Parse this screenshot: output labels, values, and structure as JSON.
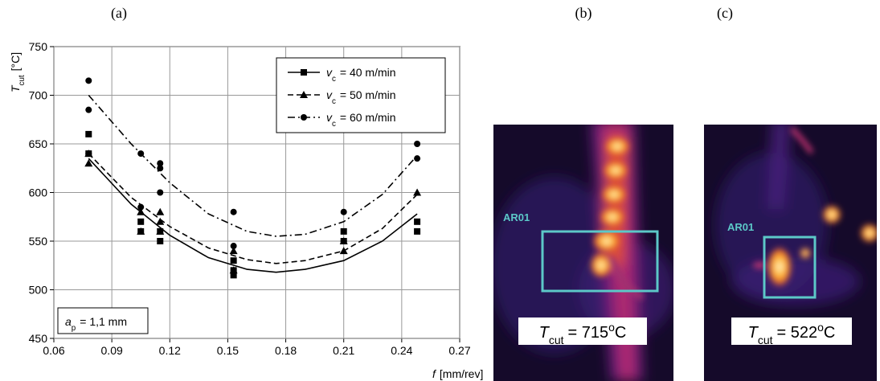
{
  "chart_data": {
    "type": "scatter",
    "panel_label": "(a)",
    "xlim": [
      0.06,
      0.27
    ],
    "xticks": [
      0.06,
      0.09,
      0.12,
      0.15,
      0.18,
      0.21,
      0.24,
      0.27
    ],
    "ylim": [
      450,
      750
    ],
    "yticks": [
      450,
      500,
      550,
      600,
      650,
      700,
      750
    ],
    "grid": true,
    "x_label": {
      "symbol": "f",
      "unit": "[mm/rev]"
    },
    "y_label": {
      "symbol": "T",
      "subscript": "cut",
      "unit": "[°C]"
    },
    "legend_symbol": "v",
    "legend_subscript": "c",
    "legend_position": "upper right",
    "annotation": {
      "symbol": "a",
      "subscript": "p",
      "text": "= 1,1 mm"
    },
    "series": [
      {
        "name": "= 40 m/min",
        "color": "#000000",
        "marker": "square",
        "line_style": "solid",
        "x": [
          0.078,
          0.078,
          0.105,
          0.105,
          0.115,
          0.115,
          0.153,
          0.153,
          0.153,
          0.21,
          0.21,
          0.248,
          0.248
        ],
        "values": [
          660,
          640,
          570,
          560,
          560,
          550,
          530,
          520,
          515,
          560,
          550,
          570,
          560
        ],
        "fit": {
          "x": [
            0.078,
            0.1,
            0.12,
            0.14,
            0.16,
            0.175,
            0.19,
            0.21,
            0.23,
            0.248
          ],
          "values": [
            635,
            588,
            556,
            533,
            521,
            518,
            521,
            530,
            550,
            578
          ]
        }
      },
      {
        "name": "= 50 m/min",
        "color": "#000000",
        "marker": "triangle",
        "line_style": "dashed",
        "x": [
          0.078,
          0.078,
          0.105,
          0.105,
          0.115,
          0.115,
          0.115,
          0.153,
          0.153,
          0.21,
          0.21,
          0.248
        ],
        "values": [
          640,
          630,
          580,
          560,
          580,
          570,
          560,
          540,
          520,
          550,
          540,
          600
        ],
        "fit": {
          "x": [
            0.078,
            0.1,
            0.12,
            0.14,
            0.16,
            0.175,
            0.19,
            0.21,
            0.23,
            0.248
          ],
          "values": [
            640,
            595,
            565,
            543,
            531,
            527,
            530,
            540,
            563,
            598
          ]
        }
      },
      {
        "name": "= 60 m/min",
        "color": "#000000",
        "marker": "circle",
        "line_style": "dashdot",
        "x": [
          0.078,
          0.078,
          0.078,
          0.105,
          0.105,
          0.115,
          0.115,
          0.115,
          0.153,
          0.153,
          0.21,
          0.21,
          0.248,
          0.248
        ],
        "values": [
          715,
          685,
          640,
          640,
          585,
          630,
          625,
          600,
          580,
          545,
          580,
          550,
          650,
          635
        ],
        "fit": {
          "x": [
            0.078,
            0.1,
            0.12,
            0.14,
            0.16,
            0.175,
            0.19,
            0.21,
            0.23,
            0.248
          ],
          "values": [
            700,
            650,
            610,
            578,
            560,
            555,
            557,
            570,
            598,
            638
          ]
        }
      }
    ]
  },
  "images": [
    {
      "panel_label": "(b)",
      "roi_label": "AR01",
      "caption": {
        "symbol": "T",
        "subscript": "cut",
        "value_text": "= 715",
        "degree": "o",
        "unit": "C"
      }
    },
    {
      "panel_label": "(c)",
      "roi_label": "AR01",
      "caption": {
        "symbol": "T",
        "subscript": "cut",
        "value_text": "= 522",
        "degree": "o",
        "unit": "C"
      }
    }
  ]
}
